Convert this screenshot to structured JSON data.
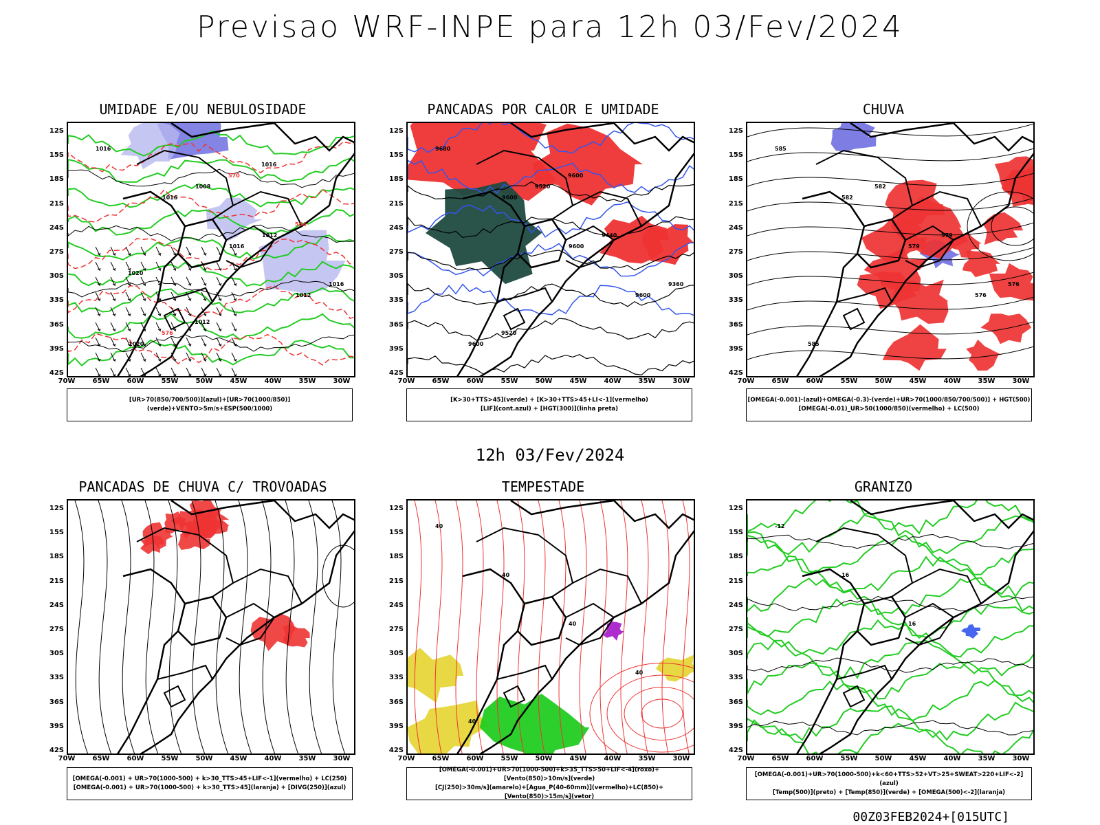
{
  "title": "Previsao WRF-INPE  para 12h 03/Fev/2024",
  "subtitle": "12h 03/Fev/2024",
  "footer": "00Z03FEB2024+[015UTC]",
  "axes": {
    "lat_ticks": [
      "12S",
      "15S",
      "18S",
      "21S",
      "24S",
      "27S",
      "30S",
      "33S",
      "36S",
      "39S",
      "42S"
    ],
    "lon_ticks": [
      "70W",
      "65W",
      "60W",
      "55W",
      "50W",
      "45W",
      "40W",
      "35W",
      "30W"
    ]
  },
  "colors": {
    "blue": "#6f6fe0",
    "lightblue": "#b8b8f0",
    "green": "#22cc22",
    "red": "#ee3333",
    "darkgreen": "#1f4a40",
    "yellow": "#e6d63a",
    "orange": "#ee8833",
    "purple": "#aa22cc",
    "contour_blue": "#3355ee"
  },
  "panels": [
    {
      "title": "UMIDADE E/OU NEBULOSIDADE",
      "legend": [
        "[UR>70(850/700/500)](azul)+[UR>70(1000/850)](verde)+VENTO>5m/s+ESP(500/1000)"
      ],
      "labels": [
        "1016",
        "1016",
        "1016",
        "1012",
        "1020",
        "1008",
        "1012",
        "1016",
        "576",
        "570",
        "564",
        "1020",
        "1012",
        "1016"
      ]
    },
    {
      "title": "PANCADAS POR CALOR E UMIDADE",
      "legend": [
        "[K>30+TTS>45](verde) + [K>30+TTS>45+LI<-1](vermelho)",
        "[LIF](cont.azul) + [HGT(300)](linha preta)"
      ],
      "labels": [
        "9680",
        "9600",
        "9600",
        "9600",
        "9600",
        "9520",
        "9440",
        "9360",
        "9520",
        "9600"
      ]
    },
    {
      "title": "CHUVA",
      "legend": [
        "[OMEGA(-0.001)-(azul)+OMEGA(-0.3)-(verde)+UR>70(1000/850/700/500)] + HGT(500)",
        "[OMEGA(-0.01)_UR>50(1000/850)(vermelho) + LC(500)"
      ],
      "labels": [
        "585",
        "582",
        "579",
        "576",
        "585",
        "582",
        "579",
        "576"
      ]
    },
    {
      "title": "PANCADAS DE CHUVA C/ TROVOADAS",
      "legend": [
        "[OMEGA(-0.001) + UR>70(1000-500) + k>30_TTS>45+LIF<-1](vermelho) + LC(250)",
        "[OMEGA(-0.001) + UR>70(1000-500) + k>30_TTS>45](laranja) + [DIVG(250)](azul)"
      ],
      "labels": []
    },
    {
      "title": "TEMPESTADE",
      "legend": [
        "[OMEGA(-0.001)+UR>70(1000-500)+k>35_TTS>50+LIF<-4](roxo)+[Vento(850)>10m/s](verde)",
        "[CJ(250)>30m/s](amarelo)+[Agua_P(40-60mm)](vermelho)+LC(850)+[Vento(850)>15m/s](vetor)"
      ],
      "labels": [
        "40",
        "40",
        "40",
        "40",
        "40"
      ]
    },
    {
      "title": "GRANIZO",
      "legend": [
        "[OMEGA(-0.001)+UR>70(1000-500)+k<60+TTS>52+VT>25+SWEAT>220+LIF<-2](azul)",
        "[Temp(500)](preto) + [Temp(850)](verde) + [OMEGA(500)<-2](laranja)"
      ],
      "labels": [
        "-12",
        "16",
        "16"
      ]
    }
  ]
}
